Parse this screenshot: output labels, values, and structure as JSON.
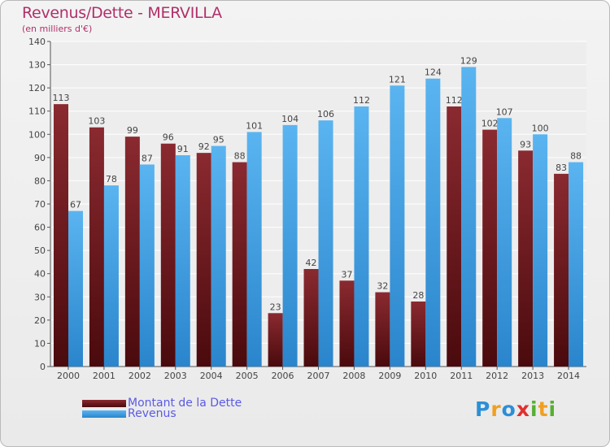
{
  "chart_data": {
    "type": "bar",
    "title": "Revenus/Dette - MERVILLA",
    "subtitle": "(en milliers d'€)",
    "categories": [
      "2000",
      "2001",
      "2002",
      "2003",
      "2004",
      "2005",
      "2006",
      "2007",
      "2008",
      "2009",
      "2010",
      "2011",
      "2012",
      "2013",
      "2014"
    ],
    "series": [
      {
        "name": "Montant de la Dette",
        "values": [
          113,
          103,
          99,
          96,
          92,
          88,
          23,
          42,
          37,
          32,
          28,
          112,
          102,
          93,
          83
        ],
        "color": "#6b1a1f"
      },
      {
        "name": "Revenus",
        "values": [
          67,
          78,
          87,
          91,
          95,
          101,
          104,
          106,
          112,
          121,
          124,
          129,
          107,
          100,
          88
        ],
        "color": "#3d9be0"
      }
    ],
    "ylim": [
      0,
      140
    ],
    "yticks": [
      0,
      10,
      20,
      30,
      40,
      50,
      60,
      70,
      80,
      90,
      100,
      110,
      120,
      130,
      140
    ],
    "grid": true,
    "legend_position": "bottom-left"
  },
  "logo": {
    "letters": [
      "P",
      "r",
      "o",
      "x",
      "i",
      "t",
      "i"
    ],
    "colors": [
      "#2c8fd6",
      "#f0a020",
      "#2c8fd6",
      "#e03030",
      "#55b030",
      "#f0a020",
      "#55b030"
    ]
  }
}
